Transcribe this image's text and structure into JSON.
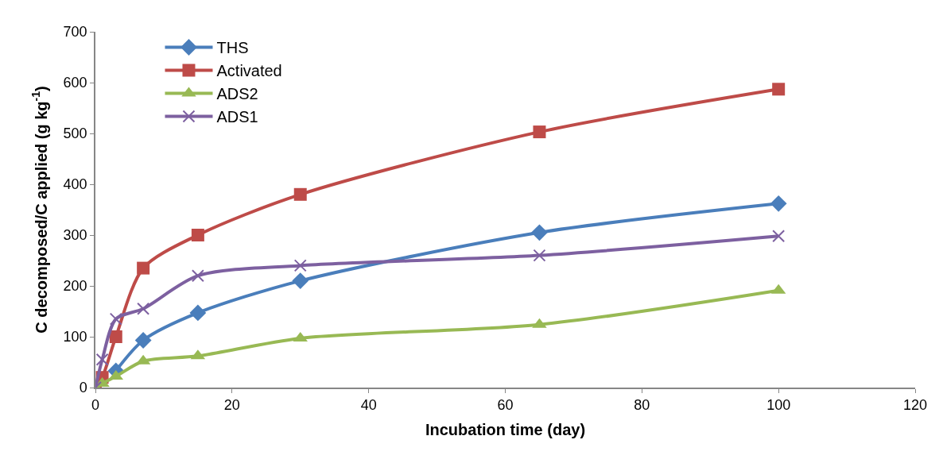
{
  "chart_data": {
    "type": "line",
    "xlabel": "Incubation time (day)",
    "ylabel": "C decomposed/C applied (g kg$^{-1}$)",
    "x": [
      0,
      1,
      3,
      7,
      15,
      30,
      65,
      100
    ],
    "xlim": [
      0,
      120
    ],
    "xticks": [
      0,
      20,
      40,
      60,
      80,
      100,
      120
    ],
    "ylim": [
      0,
      700
    ],
    "yticks": [
      0,
      100,
      200,
      300,
      400,
      500,
      600,
      700
    ],
    "legend": "top left",
    "series": [
      {
        "name": "THS",
        "color": "#4a7ebb",
        "marker": "diamond",
        "values": [
          null,
          null,
          33,
          93,
          147,
          210,
          305,
          362
        ]
      },
      {
        "name": "Activated",
        "color": "#be4b48",
        "marker": "square",
        "values": [
          0,
          20,
          100,
          235,
          300,
          380,
          503,
          587
        ]
      },
      {
        "name": "ADS2",
        "color": "#98b954",
        "marker": "triangle",
        "values": [
          0,
          8,
          22,
          52,
          62,
          97,
          124,
          191
        ]
      },
      {
        "name": "ADS1",
        "color": "#7d60a0",
        "marker": "cross",
        "values": [
          0,
          55,
          135,
          155,
          220,
          240,
          260,
          298
        ]
      }
    ]
  }
}
